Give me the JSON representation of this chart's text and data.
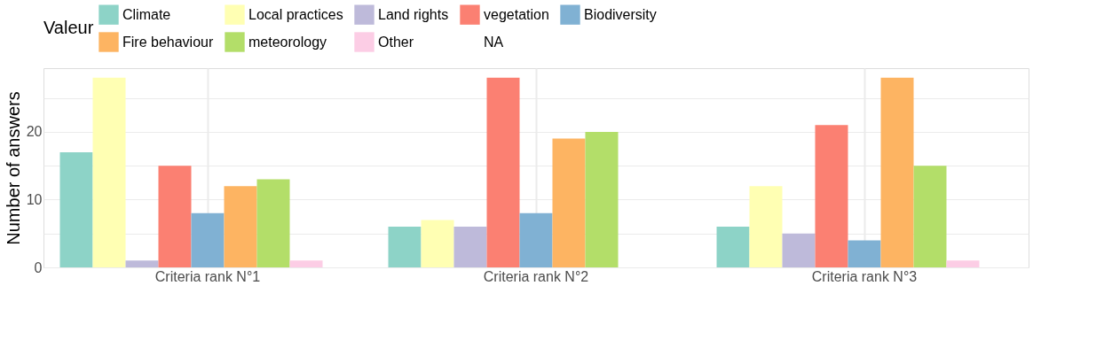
{
  "chart_data": {
    "type": "bar",
    "ylabel": "Number of answers",
    "legend_title": "Valeur",
    "legend": "top",
    "categories": [
      "Criteria rank N°1",
      "Criteria rank N°2",
      "Criteria rank N°3"
    ],
    "series": [
      {
        "name": "Climate",
        "color": "#8dd3c7",
        "values": [
          17,
          6,
          6
        ]
      },
      {
        "name": "Local practices",
        "color": "#ffffb3",
        "values": [
          28,
          7,
          12
        ]
      },
      {
        "name": "Land rights",
        "color": "#bebada",
        "values": [
          1,
          6,
          5
        ]
      },
      {
        "name": "vegetation",
        "color": "#fb8072",
        "values": [
          15,
          28,
          21
        ]
      },
      {
        "name": "Biodiversity",
        "color": "#80b1d3",
        "values": [
          8,
          8,
          4
        ]
      },
      {
        "name": "Fire behaviour",
        "color": "#fdb462",
        "values": [
          12,
          19,
          28
        ]
      },
      {
        "name": "meteorology",
        "color": "#b3de69",
        "values": [
          13,
          20,
          15
        ]
      },
      {
        "name": "Other",
        "color": "#fccde5",
        "values": [
          1,
          null,
          1
        ]
      },
      {
        "name": "NA",
        "values": [
          null,
          null,
          null
        ]
      }
    ],
    "ylim": [
      0,
      29.4
    ],
    "yticks": [
      0,
      {
        "value": 5,
        "label": null
      },
      10,
      {
        "value": 15,
        "label": null
      },
      20,
      {
        "value": 25,
        "label": null
      }
    ],
    "grid": true
  }
}
